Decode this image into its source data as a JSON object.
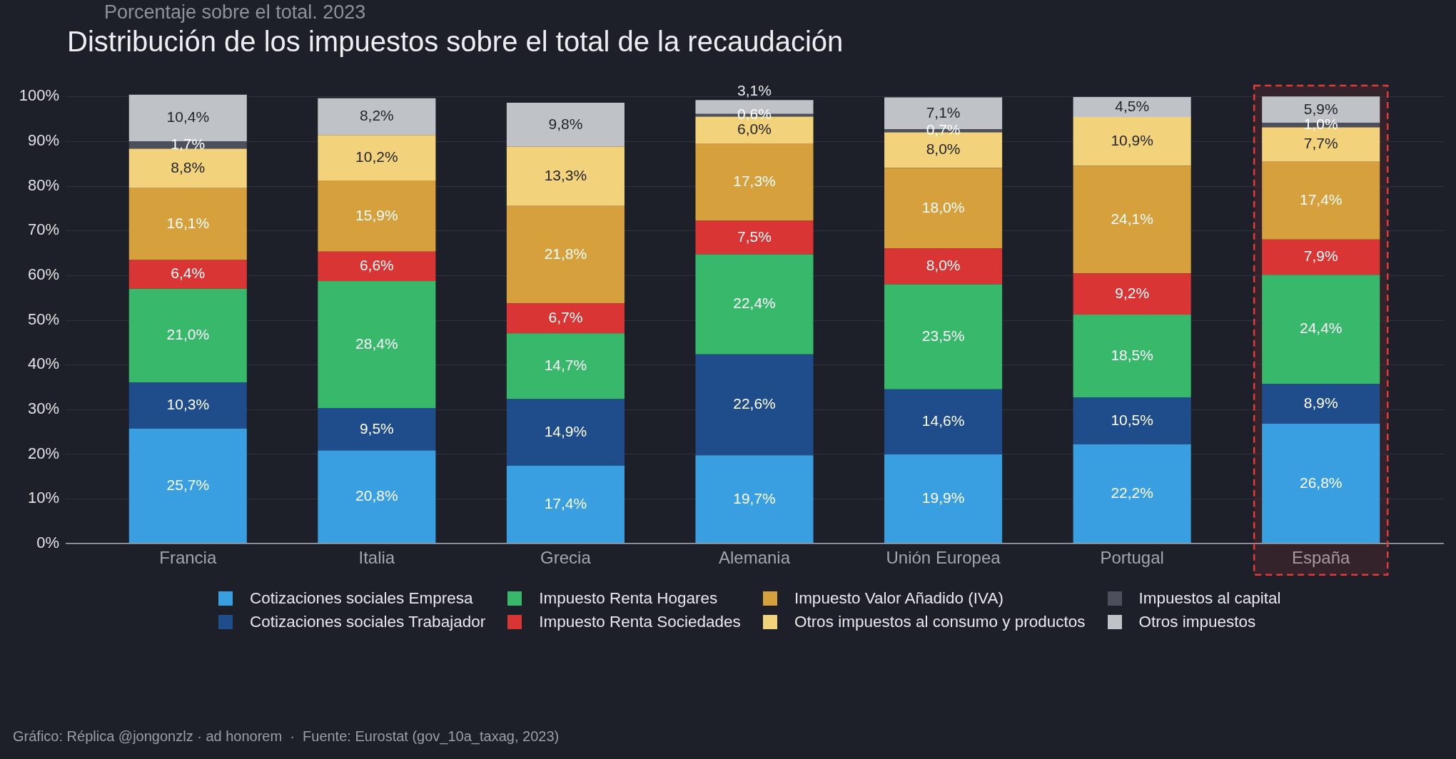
{
  "chart_data": {
    "type": "bar",
    "title": "Distribución de los impuestos sobre el total de la recaudación",
    "subtitle": "Porcentaje sobre el total. 2023",
    "categories": [
      "Francia",
      "Italia",
      "Grecia",
      "Alemania",
      "Unión Europea",
      "Portugal",
      "España"
    ],
    "stacked": true,
    "series": [
      {
        "name": "Cotizaciones sociales Empresa",
        "color": "#3a9fe0",
        "values": [
          25.7,
          20.8,
          17.4,
          19.7,
          19.9,
          22.2,
          26.8
        ],
        "value_labels": [
          "25,7%",
          "20,8%",
          "17,4%",
          "19,7%",
          "19,9%",
          "22,2%",
          "26,8%"
        ]
      },
      {
        "name": "Cotizaciones sociales Trabajador",
        "color": "#1f4d8b",
        "values": [
          10.3,
          9.5,
          14.9,
          22.6,
          14.6,
          10.5,
          8.9
        ],
        "value_labels": [
          "10,3%",
          "9,5%",
          "14,9%",
          "22,6%",
          "14,6%",
          "10,5%",
          "8,9%"
        ]
      },
      {
        "name": "Impuesto Renta Hogares",
        "color": "#37b86a",
        "values": [
          21.0,
          28.4,
          14.7,
          22.4,
          23.5,
          18.5,
          24.4
        ],
        "value_labels": [
          "21,0%",
          "28,4%",
          "14,7%",
          "22,4%",
          "23,5%",
          "18,5%",
          "24,4%"
        ]
      },
      {
        "name": "Impuesto Renta Sociedades",
        "color": "#d93535",
        "values": [
          6.4,
          6.6,
          6.7,
          7.5,
          8.0,
          9.2,
          7.9
        ],
        "value_labels": [
          "6,4%",
          "6,6%",
          "6,7%",
          "7,5%",
          "8,0%",
          "9,2%",
          "7,9%"
        ]
      },
      {
        "name": "Impuesto Valor Añadido (IVA)",
        "color": "#d6a03c",
        "values": [
          16.1,
          15.9,
          21.8,
          17.3,
          18.0,
          24.1,
          17.4
        ],
        "value_labels": [
          "16,1%",
          "15,9%",
          "21,8%",
          "17,3%",
          "18,0%",
          "24,1%",
          "17,4%"
        ]
      },
      {
        "name": "Otros impuestos al consumo y productos",
        "color": "#f2d27b",
        "values": [
          8.8,
          10.2,
          13.3,
          6.0,
          8.0,
          10.9,
          7.7
        ],
        "value_labels": [
          "8,8%",
          "10,2%",
          "13,3%",
          "6,0%",
          "8,0%",
          "10,9%",
          "7,7%"
        ]
      },
      {
        "name": "Impuestos al capital",
        "color": "#4b505c",
        "values": [
          1.7,
          null,
          null,
          0.6,
          0.7,
          null,
          1.0
        ],
        "value_labels": [
          "1,7%",
          null,
          null,
          "0,6%",
          "0,7%",
          null,
          "1,0%"
        ]
      },
      {
        "name": "Otros impuestos",
        "color": "#bfc2c6",
        "values": [
          10.4,
          8.2,
          9.8,
          3.1,
          7.1,
          4.5,
          5.9
        ],
        "value_labels": [
          "10,4%",
          "8,2%",
          "9,8%",
          "3,1%",
          "7,1%",
          "4,5%",
          "5,9%"
        ]
      }
    ],
    "ylim": [
      0,
      101
    ],
    "yticks": [
      {
        "value": 0,
        "label": "0%"
      },
      {
        "value": 10,
        "label": "10%"
      },
      {
        "value": 20,
        "label": "20%"
      },
      {
        "value": 30,
        "label": "30%"
      },
      {
        "value": 40,
        "label": "40%"
      },
      {
        "value": 50,
        "label": "50%"
      },
      {
        "value": 60,
        "label": "60%"
      },
      {
        "value": 70,
        "label": "70%"
      },
      {
        "value": 80,
        "label": "80%"
      },
      {
        "value": 90,
        "label": "90%"
      },
      {
        "value": 100,
        "label": "100%"
      }
    ],
    "grid": "y",
    "legend": "bottom",
    "bands": [
      {
        "axis": "x",
        "from": "España",
        "to": "España",
        "color": "#e03a3a"
      }
    ],
    "annotations": [
      "Gráfico: Réplica @jongonzlz · ad honorem  ·  Fuente: Eurostat (gov_10a_taxag, 2023)"
    ]
  }
}
